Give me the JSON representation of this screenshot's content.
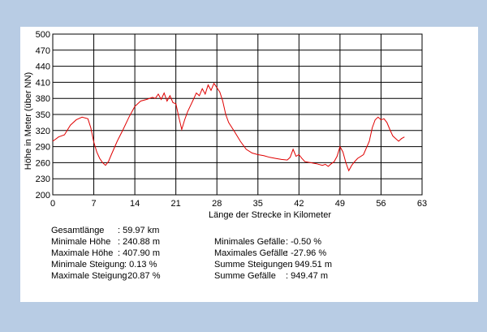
{
  "chart_data": {
    "type": "line",
    "xlabel": "Länge der Strecke in Kilometer",
    "ylabel": "Höhe in Meter (über NN)",
    "xlim": [
      0,
      63
    ],
    "ylim": [
      200,
      500
    ],
    "x_ticks": [
      0,
      7,
      14,
      21,
      28,
      35,
      42,
      49,
      56,
      63
    ],
    "y_ticks": [
      200,
      230,
      260,
      290,
      320,
      350,
      380,
      410,
      440,
      470,
      500
    ],
    "grid": true,
    "line_color": "#e00000",
    "series": [
      {
        "x": [
          0,
          1,
          2,
          3,
          4,
          5,
          6,
          6.5,
          7,
          7.5,
          8,
          8.5,
          9,
          9.5,
          10,
          11,
          12,
          13,
          14,
          15,
          16,
          17,
          17.5,
          18,
          18.5,
          19,
          19.5,
          20,
          20.5,
          21,
          21.5,
          22,
          22.5,
          23,
          24,
          24.5,
          25,
          25.5,
          26,
          26.5,
          27,
          27.5,
          28,
          28.5,
          29,
          29.5,
          30,
          31,
          32,
          33,
          34,
          35,
          36,
          37,
          38,
          39,
          40,
          40.5,
          41,
          41.5,
          42,
          42.5,
          43,
          44,
          45,
          46,
          46.5,
          47,
          47.5,
          48,
          48.5,
          49,
          49.5,
          50,
          50.5,
          51,
          51.5,
          52,
          53,
          54,
          54.5,
          55,
          55.5,
          56,
          56.5,
          57,
          57.5,
          58,
          58.5,
          59,
          59.5,
          60
        ],
        "values": [
          300,
          308,
          312,
          330,
          340,
          345,
          342,
          325,
          298,
          280,
          268,
          260,
          255,
          262,
          275,
          300,
          322,
          345,
          365,
          375,
          378,
          382,
          380,
          388,
          378,
          390,
          375,
          385,
          372,
          370,
          345,
          322,
          340,
          355,
          378,
          390,
          385,
          398,
          388,
          405,
          395,
          408,
          400,
          392,
          375,
          350,
          335,
          318,
          300,
          285,
          278,
          275,
          273,
          270,
          268,
          266,
          265,
          270,
          285,
          272,
          275,
          268,
          262,
          260,
          258,
          255,
          257,
          253,
          258,
          262,
          272,
          290,
          280,
          260,
          245,
          255,
          262,
          268,
          275,
          300,
          325,
          340,
          345,
          340,
          342,
          335,
          322,
          310,
          305,
          300,
          305,
          308
        ]
      }
    ]
  },
  "stats": {
    "left": [
      {
        "label": "Gesamtlänge",
        "value": ": 59.97  km"
      },
      {
        "label": "Minimale Höhe",
        "value": ": 240.88 m"
      },
      {
        "label": "Maximale Höhe",
        "value": ": 407.90 m"
      },
      {
        "label": "Minimale Steigung",
        "value": ": 0.13 %"
      },
      {
        "label": "Maximale Steigung",
        "value": ": 20.87 %"
      }
    ],
    "right": [
      {
        "label": "Minimales Gefälle",
        "value": ": -0.50 %"
      },
      {
        "label": "Maximales Gefälle",
        "value": ": -27.96 %"
      },
      {
        "label": "Summe Steigungen",
        "value": ": 949.51 m"
      },
      {
        "label": "Summe Gefälle",
        "value": ": 949.47 m"
      }
    ]
  }
}
